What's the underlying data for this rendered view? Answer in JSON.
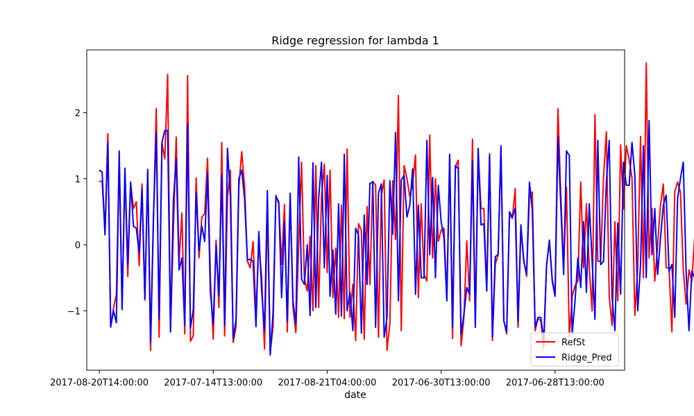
{
  "chart_data": {
    "type": "line",
    "title": "Ridge regression for lambda 1",
    "xlabel": "date",
    "ylabel": "",
    "x_tick_labels": [
      "2017-08-20T14:00:00",
      "2017-07-14T13:00:00",
      "2017-08-21T04:00:00",
      "2017-06-30T13:00:00",
      "2017-06-28T13:00:00"
    ],
    "x_tick_positions": [
      0,
      40,
      80,
      120,
      160
    ],
    "xlim": [
      -4.4,
      184.4
    ],
    "y_ticks": [
      -1,
      0,
      1,
      2
    ],
    "y_tick_labels": [
      "−1",
      "0",
      "1",
      "2"
    ],
    "ylim": [
      -1.9,
      2.95
    ],
    "grid": false,
    "legend_position": "lower-right",
    "series": [
      {
        "name": "RefSt",
        "color": "#ff0000",
        "values": [
          0.96,
          0.96,
          0.2,
          1.68,
          -1.25,
          -0.96,
          -0.75,
          1.35,
          -0.96,
          1.1,
          -0.48,
          0.93,
          0.55,
          0.65,
          -0.32,
          0.92,
          -0.84,
          1.1,
          -1.6,
          0.35,
          2.06,
          -1.4,
          1.54,
          1.3,
          2.58,
          -1.3,
          0.2,
          1.63,
          -0.27,
          0.48,
          -1.35,
          2.56,
          -1.46,
          -1.38,
          1.01,
          -0.2,
          0.42,
          0.47,
          1.31,
          -0.5,
          -1.43,
          0.07,
          -0.95,
          1.55,
          -1.38,
          0.73,
          1.13,
          -1.48,
          -1.24,
          0.88,
          1.41,
          0.88,
          -0.25,
          -0.35,
          0.05,
          -1.05,
          0.0,
          -0.49,
          -1.58,
          0.55,
          -1.62,
          -1.25,
          0.75,
          0.62,
          -0.3,
          0.61,
          -1.32,
          0.72,
          -0.95,
          -1.33,
          0.0,
          1.25,
          -0.52,
          -0.7,
          0.13,
          -1.0,
          1.2,
          -0.95,
          0.72,
          1.22,
          -0.42,
          1.13,
          -0.8,
          -0.05,
          -1.1,
          0.6,
          -1.12,
          1.45,
          -1.1,
          -0.6,
          -1.45,
          0.32,
          0.22,
          -1.43,
          0.58,
          -0.6,
          0.96,
          0.9,
          -1.4,
          0.75,
          0.98,
          -1.6,
          -1.2,
          0.97,
          0.08,
          2.26,
          -1.3,
          1.2,
          1.0,
          0.73,
          0.93,
          1.36,
          -0.8,
          0.62,
          -0.45,
          -0.55,
          1.66,
          -0.2,
          1.0,
          0.05,
          0.22,
          0.25,
          -0.82,
          1.35,
          -1.42,
          1.18,
          1.28,
          -1.53,
          -1.1,
          0.06,
          -0.85,
          1.6,
          -1.2,
          1.42,
          0.55,
          0.55,
          -0.7,
          1.38,
          -1.45,
          -0.3,
          -0.15,
          1.47,
          -1.15,
          -1.35,
          0.45,
          0.4,
          0.85,
          -1.25,
          0.25,
          -0.22,
          -0.48,
          0.73,
          0.8,
          -1.3,
          -1.12,
          -1.15,
          -1.58,
          -0.3,
          0.05,
          -0.52,
          -0.75,
          2.06,
          0.75,
          -0.35,
          0.87,
          -1.4,
          -0.78,
          -0.62,
          -0.55,
          0.95,
          -0.35,
          0.62,
          -0.35,
          -1.0,
          1.97,
          -0.25,
          -0.25,
          1.02,
          1.71,
          -0.78,
          -1.22,
          0.35,
          -0.85,
          1.51,
          0.54,
          1.5,
          1.29,
          1.01,
          -1.07,
          -0.35,
          1.64,
          -0.5,
          2.75,
          -0.2,
          0.55,
          -0.55,
          0.0,
          0.6,
          0.92,
          -0.35,
          -0.35,
          -1.32,
          0.8,
          0.95,
          0.8,
          -0.38,
          -0.9,
          -0.38,
          -0.55,
          0.12,
          -0.34
        ]
      },
      {
        "name": "Ridge_Pred",
        "color": "#0000ff",
        "values": [
          1.13,
          1.1,
          0.15,
          1.55,
          -1.24,
          -1.0,
          -1.18,
          1.42,
          -0.98,
          1.16,
          -0.3,
          0.95,
          0.28,
          0.25,
          -0.12,
          0.85,
          -0.82,
          1.14,
          -1.48,
          0.4,
          1.7,
          -1.12,
          1.55,
          1.73,
          1.73,
          -1.32,
          0.66,
          1.3,
          -0.38,
          -0.2,
          -1.22,
          1.83,
          -1.26,
          -0.98,
          0.8,
          -0.09,
          0.28,
          0.05,
          1.08,
          -0.72,
          -1.2,
          0.0,
          -0.78,
          1.06,
          -1.22,
          1.46,
          0.73,
          -1.42,
          -1.14,
          1.0,
          1.13,
          0.7,
          -0.23,
          -0.22,
          -0.25,
          -1.24,
          0.2,
          -0.7,
          -1.3,
          0.82,
          -1.67,
          -1.03,
          0.73,
          0.65,
          -0.8,
          0.35,
          -1.16,
          0.78,
          -0.85,
          -1.2,
          1.33,
          -0.52,
          -0.6,
          0.0,
          -1.07,
          1.24,
          -0.95,
          0.7,
          1.25,
          -0.35,
          1.05,
          -0.78,
          -0.08,
          -1.05,
          0.62,
          -1.08,
          1.37,
          -1.0,
          -0.72,
          -1.3,
          0.25,
          0.15,
          -1.34,
          0.45,
          -0.6,
          0.93,
          0.95,
          -1.25,
          0.78,
          0.92,
          -1.4,
          -1.1,
          0.97,
          0.16,
          1.7,
          -0.85,
          0.98,
          1.05,
          0.42,
          0.6,
          1.15,
          -0.75,
          0.6,
          -0.5,
          -0.5,
          1.58,
          -0.15,
          1.02,
          -0.5,
          0.9,
          0.35,
          0.1,
          -0.85,
          1.37,
          -1.25,
          1.2,
          1.15,
          -1.35,
          -1.05,
          -0.65,
          -0.75,
          1.27,
          -1.25,
          1.46,
          0.3,
          0.32,
          -0.7,
          1.35,
          -1.4,
          -0.18,
          -0.15,
          1.5,
          -1.15,
          -1.32,
          0.5,
          0.42,
          0.55,
          -1.18,
          0.3,
          -0.25,
          -0.45,
          0.95,
          0.53,
          -1.25,
          -1.1,
          -1.1,
          -1.45,
          -0.32,
          0.07,
          -0.55,
          -0.78,
          1.63,
          0.6,
          -0.45,
          1.42,
          1.35,
          -1.35,
          -0.85,
          -0.2,
          -0.65,
          0.35,
          -0.72,
          0.62,
          -0.25,
          -1.13,
          1.58,
          -0.3,
          -0.25,
          0.95,
          1.58,
          -0.8,
          -1.3,
          0.33,
          -0.75,
          1.25,
          0.9,
          0.9,
          1.55,
          1.05,
          -1.0,
          -0.3,
          1.5,
          -0.5,
          1.88,
          -0.15,
          0.55,
          -0.45,
          0.1,
          0.6,
          0.75,
          -0.4,
          -0.3,
          -1.1,
          0.7,
          1.0,
          1.25,
          -0.42,
          -1.3,
          -0.4,
          -0.5,
          0.16,
          -0.38
        ]
      }
    ]
  }
}
